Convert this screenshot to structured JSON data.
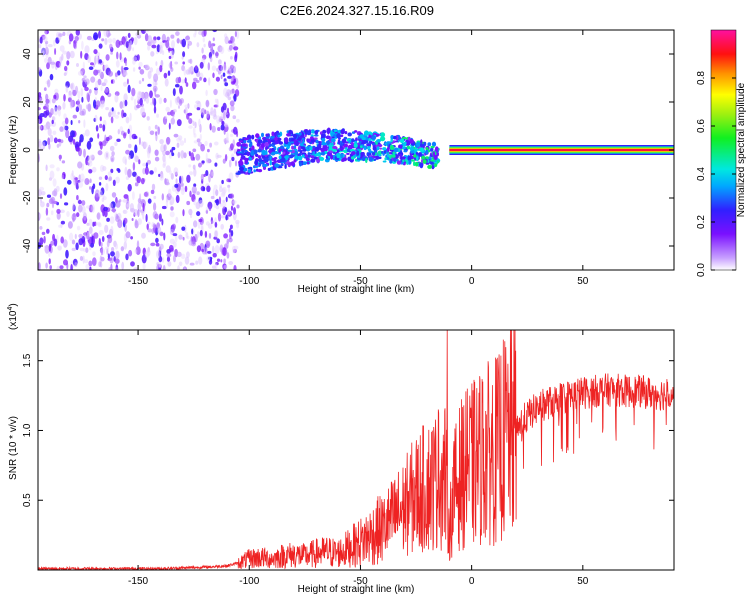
{
  "figure_title": "C2E6.2024.327.15.16.R09",
  "colors": {
    "snr_line": "#ee2222",
    "axis": "#000000",
    "background": "#ffffff"
  },
  "chart_data": [
    {
      "type": "heatmap",
      "title": "C2E6.2024.327.15.16.R09",
      "xlabel": "Height of straight line (km)",
      "ylabel": "Frequency (Hz)",
      "xlim": [
        -195,
        91
      ],
      "ylim": [
        -50,
        50
      ],
      "x_ticks": [
        -150,
        -100,
        -50,
        0,
        50
      ],
      "x_tick_labels": [
        "-150",
        "-100",
        "-50",
        "0",
        "50"
      ],
      "y_ticks": [
        -40,
        -20,
        0,
        20,
        40
      ],
      "y_tick_labels": [
        "-40",
        "-20",
        "0",
        "20",
        "40"
      ],
      "colorbar": {
        "label": "Normalized spectral amplitude",
        "range": [
          0,
          1
        ],
        "ticks": [
          0.0,
          0.2,
          0.4,
          0.6,
          0.8
        ],
        "tick_labels": [
          "0.0",
          "0.2",
          "0.4",
          "0.6",
          "0.8"
        ],
        "colormap": "rainbow"
      },
      "regions": [
        {
          "x_range": [
            -195,
            -105
          ],
          "freq_range": [
            -50,
            50
          ],
          "amplitude": 0.1,
          "description": "broadband noise"
        },
        {
          "x_range": [
            -105,
            -15
          ],
          "freq_center": 0,
          "freq_spread": 8,
          "amplitude": 0.35
        },
        {
          "x_range": [
            -10,
            91
          ],
          "freq_center": 0,
          "freq_spread": 1,
          "amplitude": 0.95
        }
      ]
    },
    {
      "type": "line",
      "xlabel": "Height of straight line (km)",
      "ylabel": "SNR (10 * v/v)",
      "scale_label": "(x10",
      "scale_exponent": "4",
      "xlim": [
        -195,
        91
      ],
      "ylim": [
        0,
        1.72
      ],
      "x_ticks": [
        -150,
        -100,
        -50,
        0,
        50
      ],
      "x_tick_labels": [
        "-150",
        "-100",
        "-50",
        "0",
        "50"
      ],
      "y_ticks": [
        0.5,
        1.0,
        1.5
      ],
      "y_tick_labels": [
        "0.5",
        "1.0",
        "1.5"
      ],
      "series": [
        {
          "name": "SNR",
          "x": [
            -195,
            -180,
            -160,
            -140,
            -120,
            -110,
            -105,
            -100,
            -95,
            -90,
            -85,
            -80,
            -75,
            -70,
            -65,
            -60,
            -55,
            -50,
            -45,
            -40,
            -35,
            -30,
            -25,
            -20,
            -15,
            -12,
            -10,
            -8,
            -5,
            0,
            5,
            10,
            15,
            20,
            25,
            30,
            35,
            40,
            45,
            50,
            55,
            60,
            65,
            70,
            75,
            80,
            85,
            91
          ],
          "values": [
            0.01,
            0.01,
            0.01,
            0.01,
            0.02,
            0.03,
            0.05,
            0.08,
            0.09,
            0.08,
            0.1,
            0.11,
            0.1,
            0.12,
            0.13,
            0.12,
            0.16,
            0.2,
            0.25,
            0.3,
            0.38,
            0.45,
            0.55,
            0.6,
            0.65,
            0.7,
            0.3,
            0.55,
            0.68,
            0.75,
            0.82,
            0.85,
            0.95,
            1.02,
            1.1,
            1.17,
            1.2,
            1.23,
            1.25,
            1.27,
            1.28,
            1.29,
            1.29,
            1.28,
            1.28,
            1.27,
            1.26,
            1.27
          ],
          "peaks": [
            {
              "x": -11,
              "value": 1.72
            },
            {
              "x": -15,
              "value": 1.15
            },
            {
              "x": -7,
              "value": 1.05
            },
            {
              "x": -2,
              "value": 1.3
            },
            {
              "x": 5,
              "value": 1.35
            },
            {
              "x": 12,
              "value": 1.4
            }
          ]
        }
      ]
    }
  ]
}
